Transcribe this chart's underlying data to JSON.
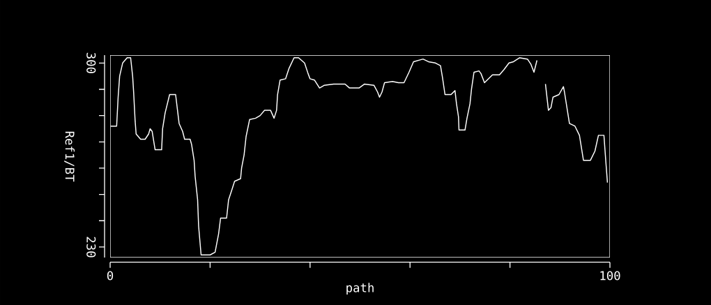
{
  "chart_data": {
    "type": "line",
    "xlabel": "path",
    "ylabel": "Ref1/BT",
    "x": [
      0.1,
      1.3,
      1.6,
      1.9,
      2.5,
      3.4,
      4.1,
      4.5,
      4.7,
      5.0,
      5.2,
      6.1,
      7.0,
      7.7,
      8.0,
      8.4,
      9.0,
      10.3,
      10.5,
      11.0,
      11.9,
      13.1,
      13.8,
      14.5,
      14.9,
      16.0,
      16.3,
      16.8,
      17.0,
      17.5,
      17.7,
      18.2,
      20.0,
      21.0,
      21.7,
      22.1,
      23.3,
      23.7,
      24.4,
      24.9,
      26.1,
      26.3,
      26.8,
      27.2,
      27.9,
      29.1,
      30.0,
      30.9,
      32.1,
      32.8,
      33.3,
      33.5,
      34.0,
      35.1,
      35.8,
      36.8,
      37.7,
      38.9,
      39.6,
      40.0,
      40.9,
      41.9,
      42.8,
      44.7,
      47.0,
      47.9,
      49.8,
      50.9,
      52.8,
      53.5,
      53.9,
      54.4,
      54.9,
      56.5,
      57.7,
      58.8,
      59.8,
      60.7,
      62.6,
      63.7,
      65.1,
      66.1,
      66.5,
      67.0,
      68.2,
      69.0,
      69.3,
      69.7,
      69.8,
      71.0,
      71.4,
      72.0,
      72.3,
      72.8,
      73.8,
      74.2,
      74.9,
      76.5,
      77.9,
      78.8,
      79.8,
      80.7,
      81.9,
      83.5,
      84.2,
      84.8,
      85.4,
      85.8,
      86.8,
      87.1,
      87.7,
      88.2,
      88.6,
      89.8,
      90.7,
      90.9,
      91.4,
      91.9,
      93.0,
      93.9,
      94.7,
      96.1,
      97.0,
      97.7,
      98.8,
      99.2,
      99.5
    ],
    "series": [
      {
        "color": "#ffffff",
        "values": [
          276,
          276,
          287,
          295,
          300,
          302,
          302,
          295,
          289,
          278,
          273,
          271,
          271,
          273,
          275,
          274,
          267,
          267,
          275,
          281,
          288,
          288,
          277,
          274,
          271,
          271,
          269,
          263,
          257,
          248,
          238,
          227,
          227,
          228,
          235,
          241,
          241,
          248,
          252,
          255,
          256,
          260,
          265,
          272,
          278.5,
          279,
          280,
          282,
          282,
          279,
          282,
          288,
          293.5,
          294,
          298,
          302,
          302,
          300,
          296,
          294,
          293.5,
          290.5,
          291.5,
          292,
          292,
          290.5,
          290.5,
          292,
          291.5,
          289,
          287,
          289,
          292.5,
          293,
          292.5,
          292.5,
          296.5,
          300.5,
          301.5,
          300.5,
          300,
          299,
          294.5,
          288,
          288,
          289.5,
          284.5,
          279.5,
          274.5,
          274.5,
          279,
          284.5,
          290,
          296.5,
          297,
          296,
          292.5,
          295.5,
          295.5,
          297.5,
          300,
          300.5,
          302,
          301.5,
          299.5,
          296.5,
          301,
          null,
          null,
          292,
          282,
          283,
          287,
          288,
          291,
          289,
          283,
          277,
          276,
          272.5,
          263,
          263,
          266.5,
          272.5,
          272.5,
          262,
          254.5
        ]
      }
    ],
    "xlim": [
      0,
      100
    ],
    "ylim": [
      226,
      303
    ],
    "xticks": [
      0,
      {
        "value": 20,
        "label": null
      },
      {
        "value": 40,
        "label": null
      },
      {
        "value": 60,
        "label": null
      },
      {
        "value": 80,
        "label": null
      },
      100
    ],
    "yticks": [
      230,
      {
        "value": 240,
        "label": null
      },
      {
        "value": 250,
        "label": null
      },
      {
        "value": 260,
        "label": null
      },
      {
        "value": 270,
        "label": null
      },
      {
        "value": 280,
        "label": null
      },
      {
        "value": 290,
        "label": null
      },
      300
    ]
  }
}
